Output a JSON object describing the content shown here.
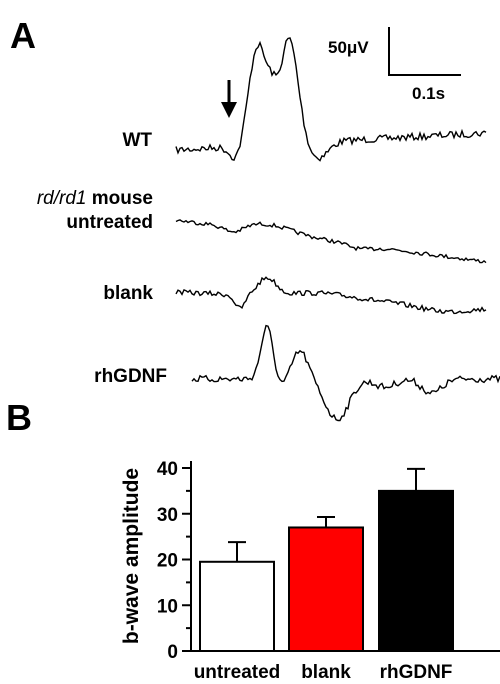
{
  "panel_a": {
    "letter": "A",
    "scale_amplitude": "50μV",
    "scale_time": "0.1s",
    "traces": [
      {
        "label": "WT"
      },
      {
        "label_italic": "rd/rd1",
        "label": "mouse",
        "label_line2": "untreated"
      },
      {
        "label": "blank"
      },
      {
        "label": "rhGDNF"
      }
    ]
  },
  "panel_b": {
    "letter": "B"
  },
  "chart_data": {
    "type": "bar",
    "categories": [
      "untreated",
      "blank",
      "rhGDNF"
    ],
    "values": [
      19.5,
      27,
      35
    ],
    "errors": [
      4.3,
      2.3,
      4.8
    ],
    "colors": [
      "#ffffff",
      "#ff0000",
      "#000000"
    ],
    "ylabel": "b-wave amplitude",
    "ylim": [
      0,
      40
    ],
    "yticks": [
      0,
      10,
      20,
      30,
      40
    ],
    "grid": false
  }
}
